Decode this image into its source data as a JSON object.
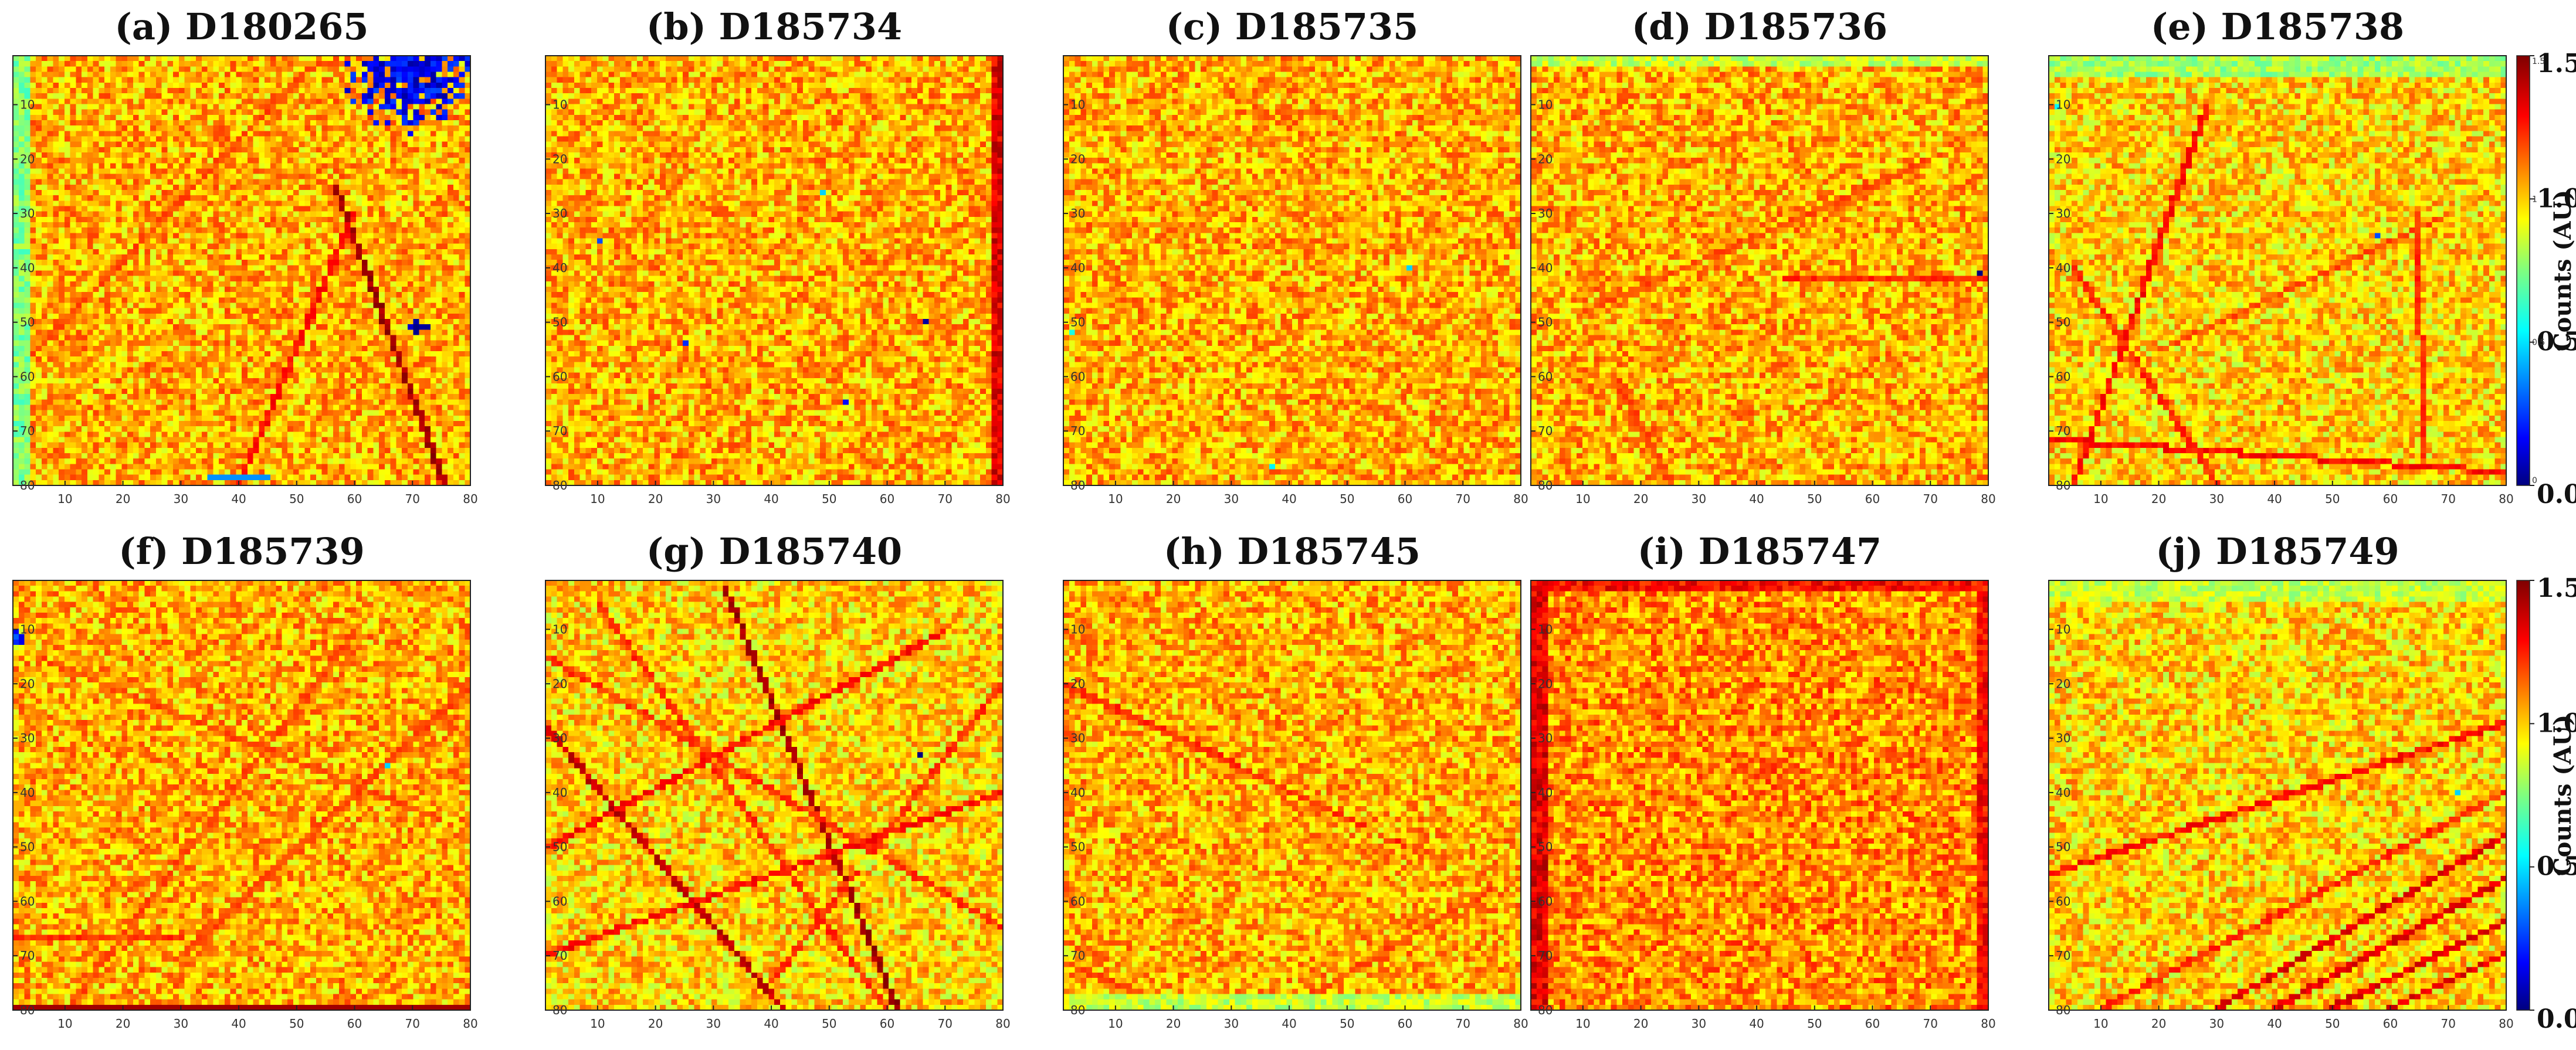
{
  "chart_data": [
    {
      "id": "a",
      "type": "heatmap",
      "title": "(a) D180265",
      "x_range": [
        1,
        80
      ],
      "y_range": [
        1,
        80
      ],
      "xticks": [
        "10",
        "20",
        "30",
        "40",
        "50",
        "60",
        "70",
        "80"
      ],
      "yticks": [
        "10",
        "20",
        "30",
        "40",
        "50",
        "60",
        "70",
        "80"
      ],
      "y_inverted": true,
      "base_level": 1.05,
      "features": [
        {
          "kind": "line",
          "from": [
            76,
            80
          ],
          "to": [
            57,
            25
          ],
          "level": 1.45
        },
        {
          "kind": "line",
          "from": [
            40,
            80
          ],
          "to": [
            60,
            30
          ],
          "level": 1.3
        },
        {
          "kind": "line",
          "from": [
            2,
            58
          ],
          "to": [
            50,
            5
          ],
          "level": 1.2
        },
        {
          "kind": "blob",
          "center": [
            70,
            3
          ],
          "radius": 12,
          "level": 0.05
        },
        {
          "kind": "blob",
          "center": [
            71,
            51
          ],
          "radius": 2,
          "level": 0.0
        },
        {
          "kind": "edge",
          "side": "left",
          "width": 3,
          "level": 0.75
        },
        {
          "kind": "band",
          "row": 79,
          "from": 35,
          "to": 45,
          "level": 0.4
        }
      ]
    },
    {
      "id": "b",
      "type": "heatmap",
      "title": "(b) D185734",
      "x_range": [
        1,
        80
      ],
      "y_range": [
        1,
        80
      ],
      "xticks": [
        "10",
        "20",
        "30",
        "40",
        "50",
        "60",
        "70",
        "80"
      ],
      "yticks": [
        "10",
        "20",
        "30",
        "40",
        "50",
        "60",
        "70",
        "80"
      ],
      "y_inverted": true,
      "base_level": 1.05,
      "features": [
        {
          "kind": "edge",
          "side": "right",
          "width": 2,
          "level": 1.35
        },
        {
          "kind": "spot",
          "at": [
            10,
            35
          ],
          "level": 0.3
        },
        {
          "kind": "spot",
          "at": [
            25,
            54
          ],
          "level": 0.25
        },
        {
          "kind": "spot",
          "at": [
            53,
            65
          ],
          "level": 0.2
        },
        {
          "kind": "spot",
          "at": [
            67,
            50
          ],
          "level": 0.05
        },
        {
          "kind": "spot",
          "at": [
            49,
            26
          ],
          "level": 0.5
        }
      ]
    },
    {
      "id": "c",
      "type": "heatmap",
      "title": "(c) D185735",
      "x_range": [
        1,
        80
      ],
      "y_range": [
        1,
        80
      ],
      "xticks": [
        "10",
        "20",
        "30",
        "40",
        "50",
        "60",
        "70",
        "80"
      ],
      "yticks": [
        "10",
        "20",
        "30",
        "40",
        "50",
        "60",
        "70",
        "80"
      ],
      "y_inverted": true,
      "base_level": 1.05,
      "features": [
        {
          "kind": "spot",
          "at": [
            61,
            40
          ],
          "level": 0.5
        },
        {
          "kind": "spot",
          "at": [
            2,
            52
          ],
          "level": 0.6
        },
        {
          "kind": "spot",
          "at": [
            37,
            77
          ],
          "level": 0.55
        }
      ]
    },
    {
      "id": "d",
      "type": "heatmap",
      "title": "(d) D185736",
      "x_range": [
        1,
        80
      ],
      "y_range": [
        1,
        80
      ],
      "xticks": [
        "10",
        "20",
        "30",
        "40",
        "50",
        "60",
        "70",
        "80"
      ],
      "yticks": [
        "10",
        "20",
        "30",
        "40",
        "50",
        "60",
        "70",
        "80"
      ],
      "y_inverted": true,
      "base_level": 1.05,
      "features": [
        {
          "kind": "line",
          "from": [
            45,
            42
          ],
          "to": [
            80,
            42
          ],
          "level": 1.25
        },
        {
          "kind": "line",
          "from": [
            10,
            48
          ],
          "to": [
            70,
            20
          ],
          "level": 1.2
        },
        {
          "kind": "line",
          "from": [
            15,
            60
          ],
          "to": [
            25,
            80
          ],
          "level": 1.2
        },
        {
          "kind": "spot",
          "at": [
            79,
            41
          ],
          "level": 0.0
        },
        {
          "kind": "edge",
          "side": "top",
          "width": 2,
          "level": 0.85
        }
      ]
    },
    {
      "id": "e",
      "type": "heatmap",
      "title": "(e) D185738",
      "x_range": [
        1,
        80
      ],
      "y_range": [
        1,
        80
      ],
      "xticks": [
        "10",
        "20",
        "30",
        "40",
        "50",
        "60",
        "70",
        "80"
      ],
      "yticks": [
        "10",
        "20",
        "30",
        "40",
        "50",
        "60",
        "70",
        "80"
      ],
      "y_inverted": true,
      "base_level": 1.0,
      "features": [
        {
          "kind": "line",
          "from": [
            5,
            80
          ],
          "to": [
            28,
            10
          ],
          "level": 1.3
        },
        {
          "kind": "line",
          "from": [
            1,
            72
          ],
          "to": [
            80,
            78
          ],
          "level": 1.3
        },
        {
          "kind": "line",
          "from": [
            5,
            40
          ],
          "to": [
            30,
            80
          ],
          "level": 1.25
        },
        {
          "kind": "line",
          "from": [
            65,
            30
          ],
          "to": [
            66,
            75
          ],
          "level": 1.25
        },
        {
          "kind": "line",
          "from": [
            20,
            55
          ],
          "to": [
            70,
            30
          ],
          "level": 1.2
        },
        {
          "kind": "edge",
          "side": "top",
          "width": 4,
          "level": 0.8
        },
        {
          "kind": "spot",
          "at": [
            58,
            34
          ],
          "level": 0.3
        },
        {
          "kind": "spot",
          "at": [
            2,
            10
          ],
          "level": 0.55
        }
      ]
    },
    {
      "id": "f",
      "type": "heatmap",
      "title": "(f) D185739",
      "x_range": [
        1,
        80
      ],
      "y_range": [
        1,
        80
      ],
      "xticks": [
        "10",
        "20",
        "30",
        "40",
        "50",
        "60",
        "70",
        "80"
      ],
      "yticks": [
        "10",
        "20",
        "30",
        "40",
        "50",
        "60",
        "70",
        "80"
      ],
      "y_inverted": true,
      "base_level": 1.05,
      "features": [
        {
          "kind": "line",
          "from": [
            1,
            67
          ],
          "to": [
            30,
            67
          ],
          "level": 1.25
        },
        {
          "kind": "line",
          "from": [
            5,
            15
          ],
          "to": [
            75,
            45
          ],
          "level": 1.2
        },
        {
          "kind": "line",
          "from": [
            10,
            80
          ],
          "to": [
            60,
            10
          ],
          "level": 1.2
        },
        {
          "kind": "line",
          "from": [
            30,
            70
          ],
          "to": [
            80,
            20
          ],
          "level": 1.2
        },
        {
          "kind": "band",
          "row": 80,
          "from": 1,
          "to": 80,
          "level": 1.45
        },
        {
          "kind": "blob",
          "center": [
            1,
            11
          ],
          "radius": 2,
          "level": 0.15
        },
        {
          "kind": "spot",
          "at": [
            66,
            35
          ],
          "level": 0.5
        }
      ]
    },
    {
      "id": "g",
      "type": "heatmap",
      "title": "(g) D185740",
      "x_range": [
        1,
        80
      ],
      "y_range": [
        1,
        80
      ],
      "xticks": [
        "10",
        "20",
        "30",
        "40",
        "50",
        "60",
        "70",
        "80"
      ],
      "yticks": [
        "10",
        "20",
        "30",
        "40",
        "50",
        "60",
        "70",
        "80"
      ],
      "y_inverted": true,
      "base_level": 1.0,
      "features": [
        {
          "kind": "line",
          "from": [
            32,
            2
          ],
          "to": [
            62,
            80
          ],
          "level": 1.45
        },
        {
          "kind": "line",
          "from": [
            1,
            28
          ],
          "to": [
            42,
            80
          ],
          "level": 1.4
        },
        {
          "kind": "line",
          "from": [
            1,
            50
          ],
          "to": [
            70,
            10
          ],
          "level": 1.3
        },
        {
          "kind": "line",
          "from": [
            1,
            70
          ],
          "to": [
            80,
            40
          ],
          "level": 1.3
        },
        {
          "kind": "line",
          "from": [
            10,
            5
          ],
          "to": [
            60,
            80
          ],
          "level": 1.25
        },
        {
          "kind": "line",
          "from": [
            40,
            75
          ],
          "to": [
            80,
            20
          ],
          "level": 1.25
        },
        {
          "kind": "line",
          "from": [
            1,
            15
          ],
          "to": [
            80,
            65
          ],
          "level": 1.25
        },
        {
          "kind": "blob",
          "center": [
            57,
            53
          ],
          "radius": 3,
          "level": 0.8
        },
        {
          "kind": "spot",
          "at": [
            66,
            33
          ],
          "level": 0.0
        }
      ]
    },
    {
      "id": "h",
      "type": "heatmap",
      "title": "(h) D185745",
      "x_range": [
        1,
        80
      ],
      "y_range": [
        1,
        80
      ],
      "xticks": [
        "10",
        "20",
        "30",
        "40",
        "50",
        "60",
        "70",
        "80"
      ],
      "yticks": [
        "10",
        "20",
        "30",
        "40",
        "50",
        "60",
        "70",
        "80"
      ],
      "y_inverted": true,
      "base_level": 1.05,
      "features": [
        {
          "kind": "line",
          "from": [
            1,
            20
          ],
          "to": [
            60,
            50
          ],
          "level": 1.25
        },
        {
          "kind": "line",
          "from": [
            1,
            72
          ],
          "to": [
            20,
            80
          ],
          "level": 1.2
        },
        {
          "kind": "line",
          "from": [
            40,
            80
          ],
          "to": [
            75,
            58
          ],
          "level": 1.2
        },
        {
          "kind": "edge",
          "side": "bottom",
          "width": 3,
          "level": 0.85
        },
        {
          "kind": "blob",
          "center": [
            57,
            47
          ],
          "radius": 3,
          "level": 0.85
        }
      ]
    },
    {
      "id": "i",
      "type": "heatmap",
      "title": "(i) D185747",
      "x_range": [
        1,
        80
      ],
      "y_range": [
        1,
        80
      ],
      "xticks": [
        "10",
        "20",
        "30",
        "40",
        "50",
        "60",
        "70",
        "80"
      ],
      "yticks": [
        "10",
        "20",
        "30",
        "40",
        "50",
        "60",
        "70",
        "80"
      ],
      "y_inverted": true,
      "base_level": 1.1,
      "features": [
        {
          "kind": "edge",
          "side": "left",
          "width": 3,
          "level": 1.35
        },
        {
          "kind": "edge",
          "side": "right",
          "width": 2,
          "level": 1.3
        },
        {
          "kind": "edge",
          "side": "top",
          "width": 2,
          "level": 1.3
        }
      ]
    },
    {
      "id": "j",
      "type": "heatmap",
      "title": "(j) D185749",
      "x_range": [
        1,
        80
      ],
      "y_range": [
        1,
        80
      ],
      "xticks": [
        "10",
        "20",
        "30",
        "40",
        "50",
        "60",
        "70",
        "80"
      ],
      "yticks": [
        "10",
        "20",
        "30",
        "40",
        "50",
        "60",
        "70",
        "80"
      ],
      "y_inverted": true,
      "base_level": 1.0,
      "features": [
        {
          "kind": "line",
          "from": [
            1,
            55
          ],
          "to": [
            80,
            27
          ],
          "level": 1.3
        },
        {
          "kind": "line",
          "from": [
            30,
            80
          ],
          "to": [
            80,
            48
          ],
          "level": 1.35
        },
        {
          "kind": "line",
          "from": [
            40,
            80
          ],
          "to": [
            80,
            56
          ],
          "level": 1.35
        },
        {
          "kind": "line",
          "from": [
            50,
            80
          ],
          "to": [
            80,
            64
          ],
          "level": 1.35
        },
        {
          "kind": "line",
          "from": [
            60,
            80
          ],
          "to": [
            80,
            70
          ],
          "level": 1.35
        },
        {
          "kind": "line",
          "from": [
            10,
            80
          ],
          "to": [
            80,
            40
          ],
          "level": 1.25
        },
        {
          "kind": "edge",
          "side": "top",
          "width": 4,
          "level": 0.85
        },
        {
          "kind": "spot",
          "at": [
            72,
            40
          ],
          "level": 0.5
        }
      ]
    }
  ],
  "colorbars": [
    {
      "id": "cb-top",
      "label": "Counts (AU)",
      "ticks": [
        "1.5",
        "1.0",
        "0.5",
        "0.0"
      ],
      "tick_values": [
        1.5,
        1.0,
        0.5,
        0.0
      ],
      "minor_ticks": [
        "1.5",
        "1",
        "0.5",
        "0"
      ],
      "range": [
        0,
        1.5
      ],
      "colormap": "jet"
    },
    {
      "id": "cb-bottom",
      "label": "Counts (AU)",
      "ticks": [
        "1.5",
        "1.0",
        "0.5",
        "0.0"
      ],
      "tick_values": [
        1.5,
        1.0,
        0.5,
        0.0
      ],
      "range": [
        0,
        1.5
      ],
      "colormap": "jet"
    }
  ]
}
